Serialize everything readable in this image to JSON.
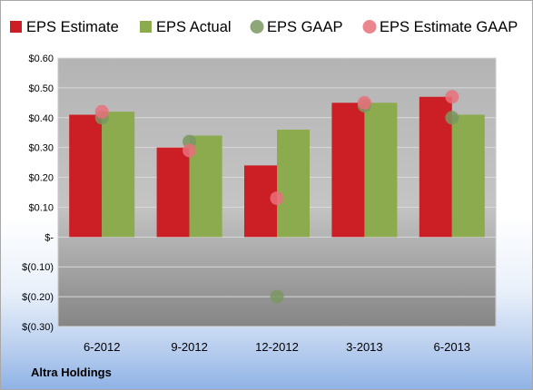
{
  "company": "Altra Holdings",
  "chart_data": {
    "type": "bar",
    "title": "",
    "xlabel": "",
    "ylabel": "",
    "categories": [
      "6-2012",
      "9-2012",
      "12-2012",
      "3-2013",
      "6-2013"
    ],
    "ylim": [
      -0.3,
      0.6
    ],
    "yticks": [
      0.6,
      0.5,
      0.4,
      0.3,
      0.2,
      0.1,
      0.0,
      -0.1,
      -0.2,
      -0.3
    ],
    "ytick_labels": [
      "$0.60",
      "$0.50",
      "$0.40",
      "$0.30",
      "$0.20",
      "$0.10",
      "$-",
      "$(0.10)",
      "$(0.20)",
      "$(0.30)"
    ],
    "legend_position": "top",
    "grid": true,
    "series": [
      {
        "name": "EPS Estimate",
        "kind": "bar",
        "color": "#cc1f25",
        "values": [
          0.41,
          0.3,
          0.24,
          0.45,
          0.47
        ]
      },
      {
        "name": "EPS Actual",
        "kind": "bar",
        "color": "#8caa4e",
        "values": [
          0.42,
          0.34,
          0.36,
          0.45,
          0.41
        ]
      },
      {
        "name": "EPS GAAP",
        "kind": "point",
        "color": "#7a9862",
        "values": [
          0.4,
          0.32,
          -0.2,
          0.44,
          0.4
        ]
      },
      {
        "name": "EPS Estimate GAAP",
        "kind": "point",
        "color": "#e8707a",
        "values": [
          0.42,
          0.29,
          0.13,
          0.45,
          0.47
        ]
      }
    ]
  }
}
